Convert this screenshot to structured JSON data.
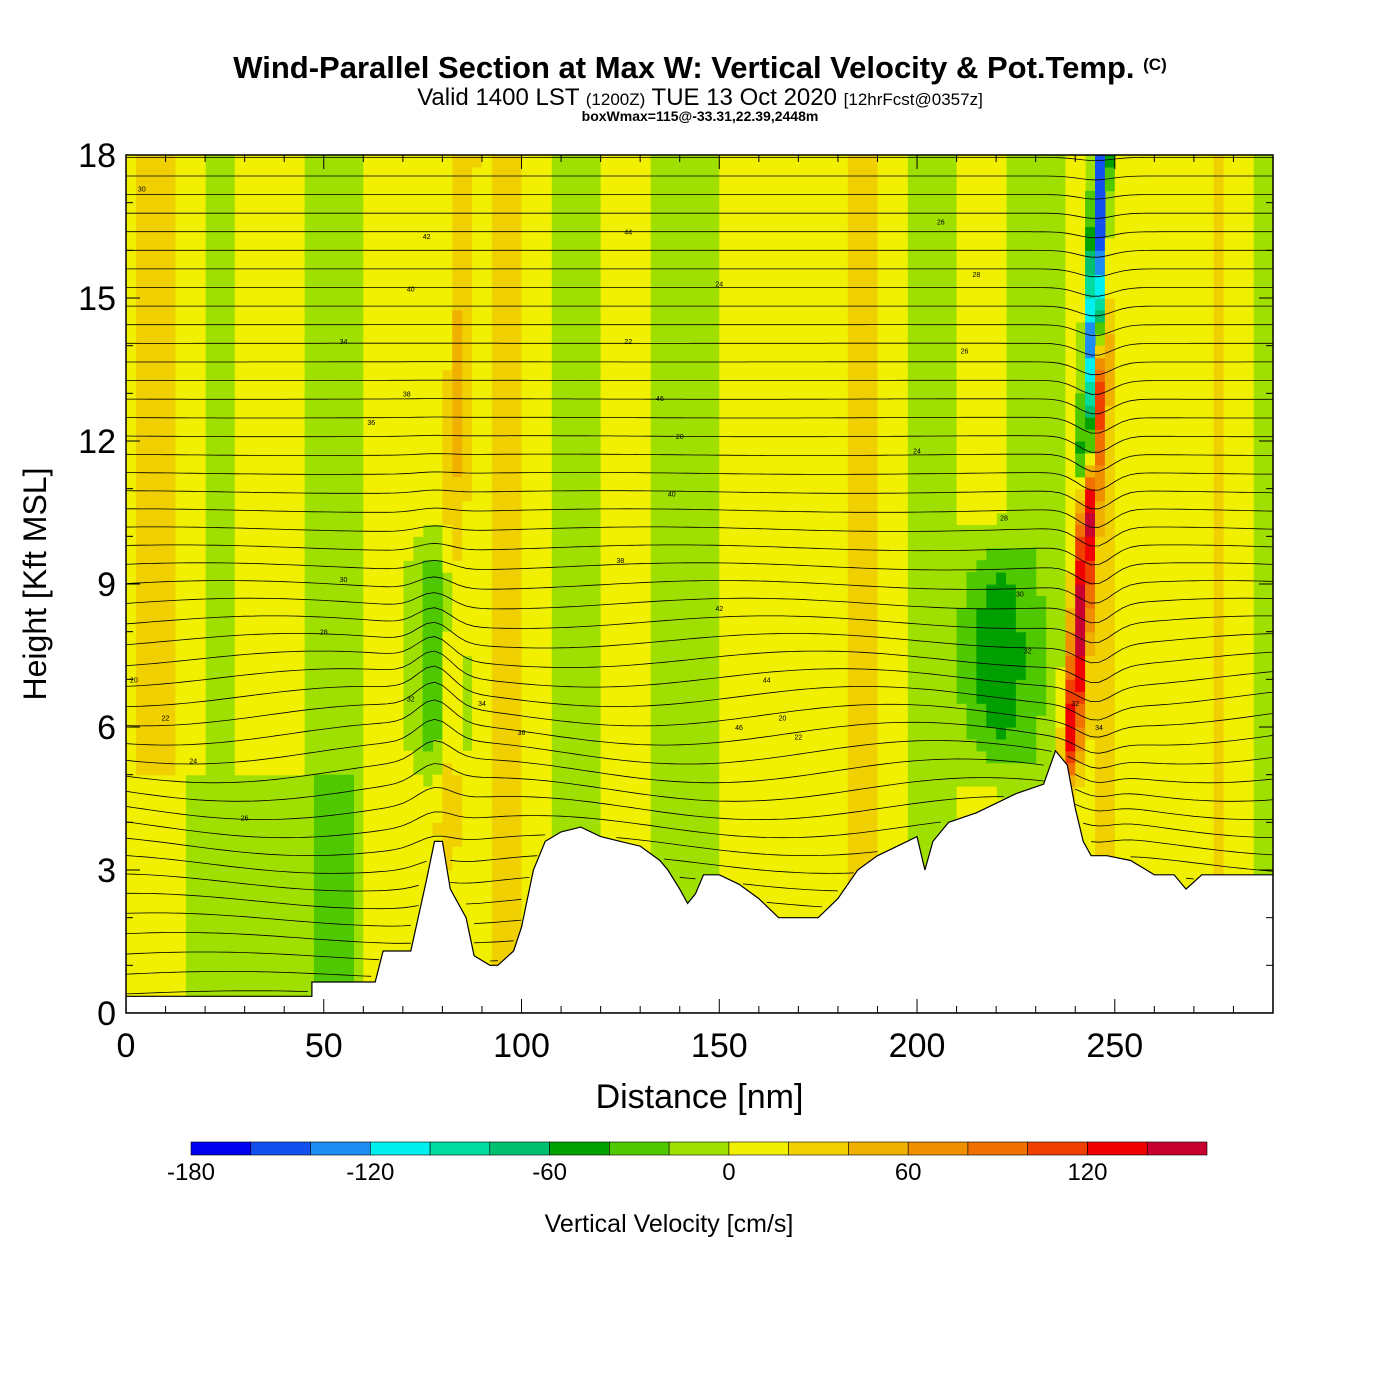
{
  "header": {
    "title": "Wind-Parallel Section at Max W: Vertical Velocity & Pot.Temp.",
    "title_mark": "(C)",
    "subtitle_valid": "Valid 1400 LST",
    "subtitle_utc": "(1200Z)",
    "subtitle_date": "TUE 13 Oct 2020",
    "subtitle_fcst": "[12hrFcst@0357z]",
    "box_info": "boxWmax=115@-33.31,22.39,2448m"
  },
  "chart_data": {
    "type": "heatmap",
    "xlabel": "Distance [nm]",
    "ylabel": "Height [Kft MSL]",
    "xlim": [
      0,
      290
    ],
    "ylim": [
      0,
      18
    ],
    "x_ticks": [
      0,
      50,
      100,
      150,
      200,
      250
    ],
    "y_ticks": [
      0,
      3,
      6,
      9,
      12,
      15,
      18
    ],
    "grid": false,
    "colorbar": {
      "label": "Vertical Velocity [cm/s]",
      "range": [
        -180,
        160
      ],
      "step": 20,
      "tick_labels": [
        "-180",
        "-120",
        "-60",
        "0",
        "60",
        "120"
      ],
      "colors": [
        "#0000f0",
        "#1450f0",
        "#1e8cf0",
        "#00f0f0",
        "#00dca0",
        "#00c070",
        "#00a000",
        "#50c800",
        "#a0e000",
        "#f0f000",
        "#f0d000",
        "#f0b000",
        "#f09000",
        "#f07000",
        "#f04000",
        "#f00000",
        "#c80030"
      ]
    },
    "terrain_profile": {
      "x": [
        0,
        47,
        47,
        63,
        65,
        72,
        76,
        78,
        80,
        82,
        86,
        88,
        92,
        94,
        98,
        100,
        103,
        106,
        110,
        115,
        120,
        125,
        130,
        135,
        137,
        140,
        142,
        144,
        146,
        150,
        155,
        160,
        165,
        175,
        180,
        185,
        190,
        195,
        200,
        202,
        204,
        208,
        215,
        220,
        225,
        232,
        235,
        238,
        240,
        242,
        244,
        248,
        254,
        260,
        265,
        268,
        272,
        290
      ],
      "y": [
        0.35,
        0.35,
        0.65,
        0.65,
        1.3,
        1.3,
        2.8,
        3.6,
        3.6,
        2.6,
        2.0,
        1.2,
        1.0,
        1.0,
        1.3,
        1.8,
        3.0,
        3.6,
        3.8,
        3.9,
        3.7,
        3.6,
        3.5,
        3.2,
        3.0,
        2.6,
        2.3,
        2.5,
        2.9,
        2.9,
        2.7,
        2.4,
        2.0,
        2.0,
        2.4,
        3.0,
        3.3,
        3.5,
        3.7,
        3.0,
        3.6,
        4.0,
        4.2,
        4.4,
        4.6,
        4.8,
        5.5,
        5.2,
        4.3,
        3.6,
        3.3,
        3.3,
        3.2,
        2.9,
        2.9,
        2.6,
        2.9,
        2.9
      ]
    },
    "updraft_cores": [
      {
        "x": 83,
        "y_range": [
          4,
          18
        ],
        "w": 40
      },
      {
        "x": 242,
        "y_range": [
          6,
          13
        ],
        "w": 140
      }
    ],
    "downdraft_cores": [
      {
        "x": 245,
        "y_range": [
          12,
          18
        ],
        "w": -180
      },
      {
        "x": 78,
        "y_range": [
          6,
          9
        ],
        "w": -40
      },
      {
        "x": 220,
        "y_range": [
          6,
          9
        ],
        "w": -40
      }
    ],
    "theta_contour_labels": [
      "20",
      "22",
      "24",
      "26",
      "28",
      "30",
      "32",
      "34",
      "36",
      "38",
      "40",
      "42",
      "44",
      "46"
    ]
  }
}
